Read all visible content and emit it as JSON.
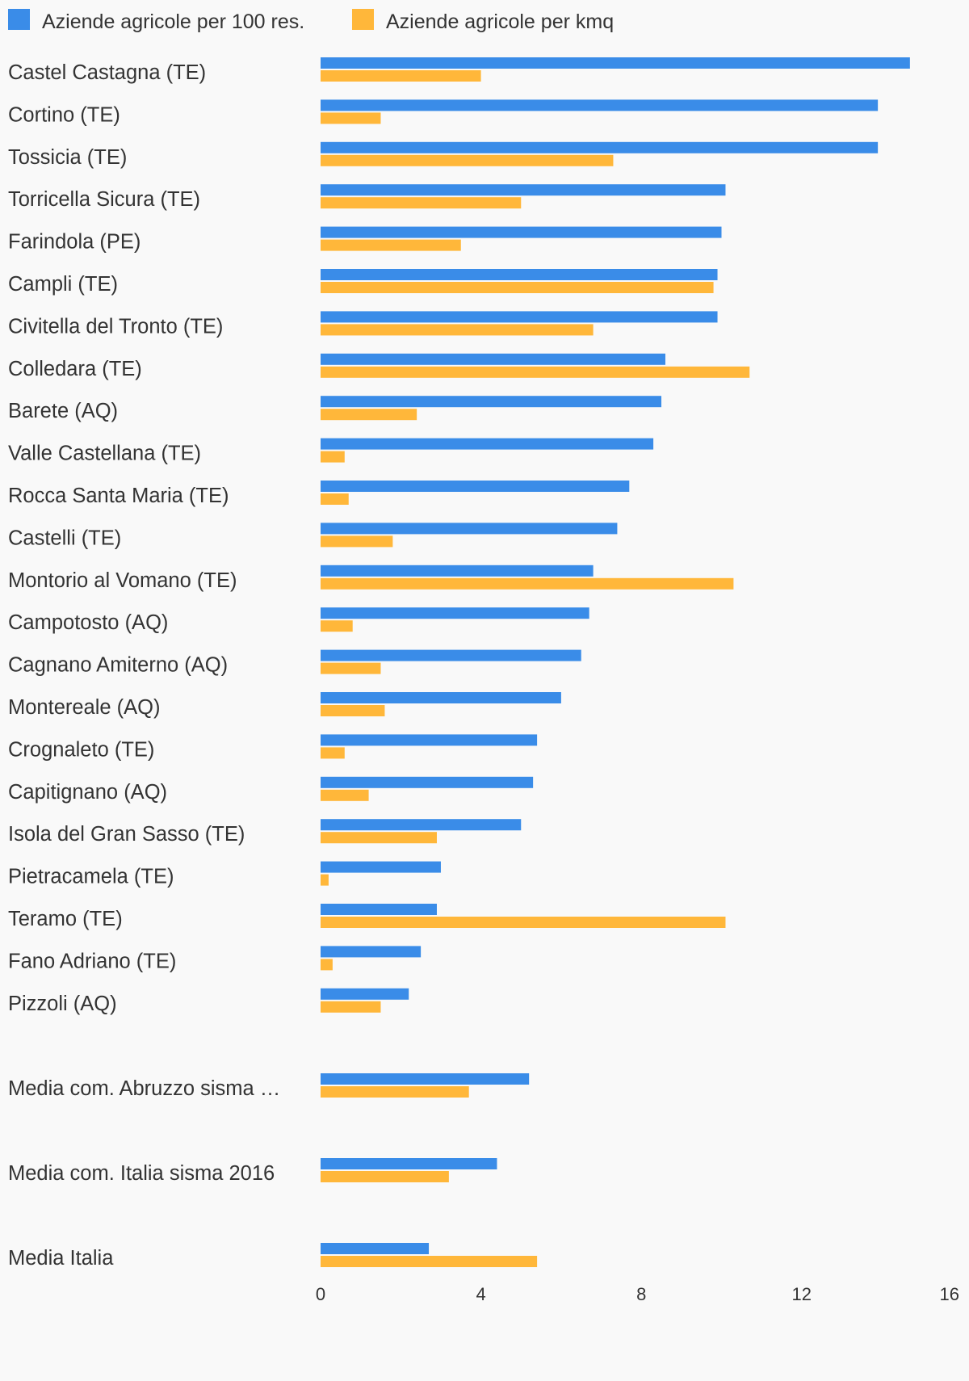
{
  "chart_data": {
    "type": "bar",
    "orientation": "horizontal",
    "title": "",
    "xlabel": "",
    "ylabel": "",
    "xlim": [
      0,
      16
    ],
    "xticks": [
      "0",
      "4",
      "8",
      "12",
      "16"
    ],
    "grid": false,
    "legend_position": "top-left",
    "categories": [
      "Castel Castagna (TE)",
      "Cortino (TE)",
      "Tossicia (TE)",
      "Torricella Sicura (TE)",
      "Farindola (PE)",
      "Campli (TE)",
      "Civitella del Tronto (TE)",
      "Colledara (TE)",
      "Barete (AQ)",
      "Valle Castellana (TE)",
      "Rocca Santa Maria (TE)",
      "Castelli (TE)",
      "Montorio al Vomano (TE)",
      "Campotosto (AQ)",
      "Cagnano Amiterno (AQ)",
      "Montereale (AQ)",
      "Crognaleto (TE)",
      "Capitignano (AQ)",
      "Isola del Gran Sasso (TE)",
      "Pietracamela (TE)",
      "Teramo (TE)",
      "Fano Adriano (TE)",
      "Pizzoli (AQ)",
      "Media com. Abruzzo sisma …",
      "Media com. Italia sisma 2016",
      "Media Italia"
    ],
    "series": [
      {
        "name": "Aziende agricole per 100 res.",
        "color": "#3a8ce8",
        "values": [
          14.7,
          13.9,
          13.9,
          10.1,
          10.0,
          9.9,
          9.9,
          8.6,
          8.5,
          8.3,
          7.7,
          7.4,
          6.8,
          6.7,
          6.5,
          6.0,
          5.4,
          5.3,
          5.0,
          3.0,
          2.9,
          2.5,
          2.2,
          5.2,
          4.4,
          2.7
        ]
      },
      {
        "name": "Aziende agricole per kmq",
        "color": "#ffb73a",
        "values": [
          4.0,
          1.5,
          7.3,
          5.0,
          3.5,
          9.8,
          6.8,
          10.7,
          2.4,
          0.6,
          0.7,
          1.8,
          10.3,
          0.8,
          1.5,
          1.6,
          0.6,
          1.2,
          2.9,
          0.2,
          10.1,
          0.3,
          1.5,
          3.7,
          3.2,
          5.4
        ]
      }
    ]
  }
}
